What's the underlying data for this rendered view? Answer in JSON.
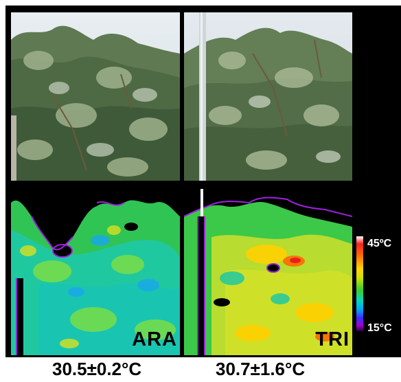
{
  "panels": {
    "left": {
      "label": "ARA",
      "temperature": "30.5±0.2°C"
    },
    "right": {
      "label": "TRI",
      "temperature": "30.7±1.6°C"
    }
  },
  "colorbar": {
    "max_label": "45ºC",
    "min_label": "15°C",
    "colors": [
      "#ffffff",
      "#ff2020",
      "#ff6a00",
      "#ffd400",
      "#3ccf2a",
      "#00d9c0",
      "#00a0ff",
      "#3a2cff",
      "#a000d0",
      "#2a0040"
    ]
  }
}
